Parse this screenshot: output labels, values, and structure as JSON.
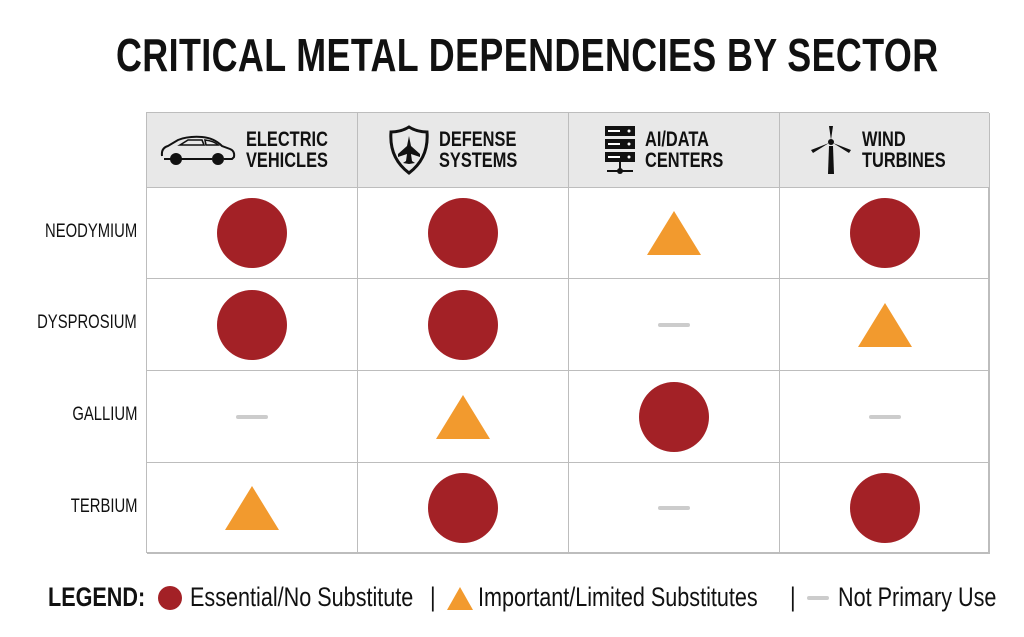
{
  "chart_data": {
    "type": "table",
    "title": "CRITICAL METAL DEPENDENCIES BY SECTOR",
    "columns": [
      {
        "line1": "ELECTRIC",
        "line2": "VEHICLES",
        "icon": "car-icon"
      },
      {
        "line1": "DEFENSE",
        "line2": "SYSTEMS",
        "icon": "shield-jet-icon"
      },
      {
        "line1": "AI/DATA",
        "line2": "CENTERS",
        "icon": "server-icon"
      },
      {
        "line1": "WIND",
        "line2": "TURBINES",
        "icon": "wind-turbine-icon"
      }
    ],
    "rows": [
      "NEODYMIUM",
      "DYSPROSIUM",
      "GALLIUM",
      "TERBIUM"
    ],
    "values": [
      [
        "essential",
        "essential",
        "important",
        "essential"
      ],
      [
        "essential",
        "essential",
        "none",
        "important"
      ],
      [
        "none",
        "important",
        "essential",
        "none"
      ],
      [
        "important",
        "essential",
        "none",
        "essential"
      ]
    ],
    "legend": {
      "label": "LEGEND:",
      "essential": "Essential/No Substitute",
      "important": "Important/Limited Substitutes",
      "none": "Not Primary Use",
      "separator": "|"
    },
    "colors": {
      "essential": "#A32126",
      "important": "#F29A2E",
      "none": "#CCCCCC",
      "header_bg": "#E8E8E8"
    }
  }
}
